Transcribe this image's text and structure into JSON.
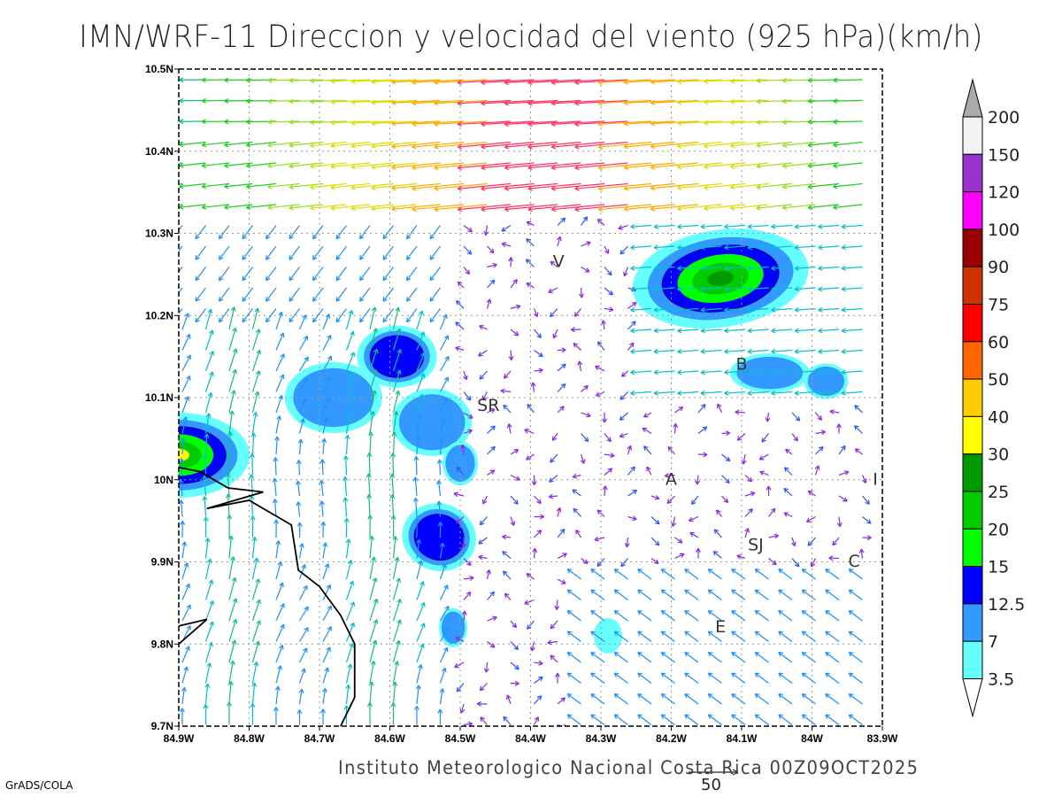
{
  "title": "IMN/WRF-11 Direccion y velocidad del viento (925 hPa)(km/h)",
  "credit": "Instituto Meteorologico Nacional Costa Rica 00Z09OCT2025",
  "software": "GrADS/COLA",
  "reference_vector_label": "50",
  "map": {
    "lon_range": [
      -84.9,
      -83.9
    ],
    "lat_range": [
      9.7,
      10.5
    ],
    "x_ticks": [
      "84.9W",
      "84.8W",
      "84.7W",
      "84.6W",
      "84.5W",
      "84.4W",
      "84.3W",
      "84.2W",
      "84.1W",
      "84W",
      "83.9W"
    ],
    "y_ticks": [
      "9.7N",
      "9.8N",
      "9.9N",
      "10N",
      "10.1N",
      "10.2N",
      "10.3N",
      "10.4N",
      "10.5N"
    ],
    "places": [
      {
        "label": "V",
        "lon": -84.36,
        "lat": 10.265
      },
      {
        "label": "SR",
        "lon": -84.46,
        "lat": 10.09
      },
      {
        "label": "B",
        "lon": -84.1,
        "lat": 10.14
      },
      {
        "label": "A",
        "lon": -84.2,
        "lat": 10.0
      },
      {
        "label": "I",
        "lon": -83.91,
        "lat": 10.0
      },
      {
        "label": "SJ",
        "lon": -84.08,
        "lat": 9.92
      },
      {
        "label": "C",
        "lon": -83.94,
        "lat": 9.9
      },
      {
        "label": "E",
        "lon": -84.13,
        "lat": 9.82
      }
    ]
  },
  "colorbar": {
    "levels": [
      "3.5",
      "7",
      "12.5",
      "15",
      "20",
      "25",
      "30",
      "40",
      "50",
      "60",
      "75",
      "90",
      "100",
      "120",
      "150",
      "200"
    ],
    "colors": [
      "#66ffff",
      "#3399ff",
      "#0000ff",
      "#00ff00",
      "#00cc00",
      "#009900",
      "#ffff00",
      "#ffcc00",
      "#ff6600",
      "#ff0000",
      "#cc3300",
      "#990000",
      "#ff00ff",
      "#9933cc",
      "#f2f2f2"
    ],
    "top_arrow_color": "#aaaaaa"
  }
}
